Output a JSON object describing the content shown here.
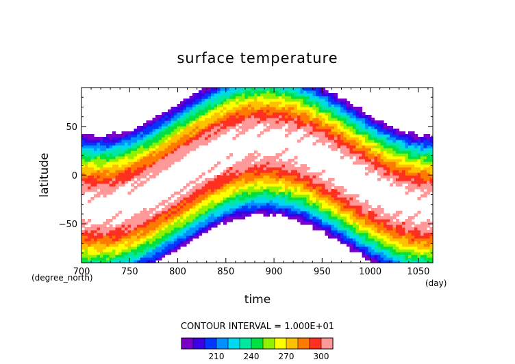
{
  "chart_data": {
    "type": "heatmap",
    "title": "surface temperature",
    "xlabel": "time",
    "ylabel": "latitude",
    "x_unit": "(day)",
    "y_unit": "(degree_north)",
    "xlim": [
      700,
      1065
    ],
    "ylim": [
      -90,
      90
    ],
    "x_ticks": [
      700,
      750,
      800,
      850,
      900,
      950,
      1000,
      1050
    ],
    "y_ticks": [
      50,
      0,
      -50
    ],
    "x_tick_labels": [
      "700",
      "750",
      "800",
      "850",
      "900",
      "950",
      "1000",
      "1050"
    ],
    "y_tick_labels": [
      "50",
      "0",
      "−50"
    ],
    "contour_interval_label": "CONTOUR INTERVAL = 1.000E+01",
    "contour_levels": [
      180,
      190,
      200,
      210,
      220,
      230,
      240,
      250,
      260,
      270,
      280,
      290,
      300,
      310
    ],
    "colorbar_tick_labels": [
      "210",
      "240",
      "270",
      "300"
    ],
    "colorbar_tick_values": [
      210,
      240,
      270,
      300
    ],
    "colors": [
      "#7a00c8",
      "#3c00e6",
      "#0038ff",
      "#0090ff",
      "#00d8f0",
      "#00e8a0",
      "#00e040",
      "#90f000",
      "#ffff00",
      "#ffc000",
      "#ff7a00",
      "#ff3020",
      "#ff9898"
    ],
    "grid": false,
    "legend": "bottom colorbar"
  }
}
